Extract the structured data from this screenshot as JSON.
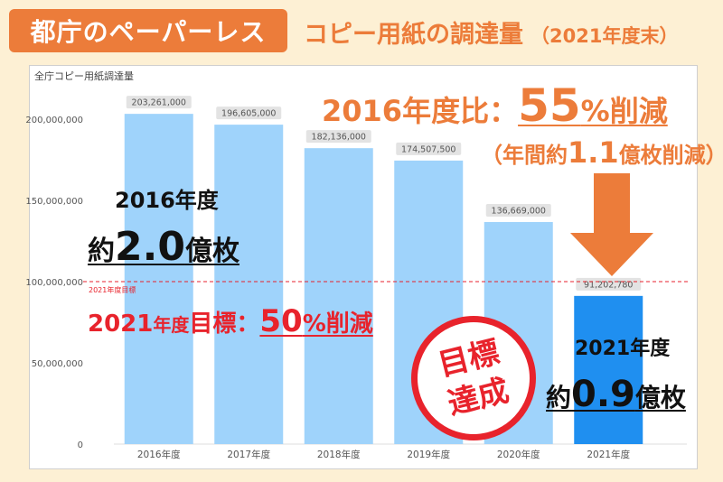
{
  "header": {
    "badge": "都庁のペーパーレス",
    "title": "コピー用紙の調達量",
    "title_sub": "（2021年度末）"
  },
  "colors": {
    "accent": "#ec7c3a",
    "bar": "#9fd3fb",
    "bar_highlight": "#1f8ff0",
    "target": "#e8232c"
  },
  "chart_data": {
    "type": "bar",
    "title": "全庁コピー用紙調達量",
    "categories": [
      "2016年度",
      "2017年度",
      "2018年度",
      "2019年度",
      "2020年度",
      "2021年度"
    ],
    "values": [
      203261000,
      196605000,
      182136000,
      174507500,
      136669000,
      91202780
    ],
    "value_labels": [
      "203,261,000",
      "196,605,000",
      "182,136,000",
      "174,507,500",
      "136,669,000",
      "91,202,780"
    ],
    "highlight_index": 5,
    "ylim": [
      0,
      200000000
    ],
    "y_ticks": [
      0,
      50000000,
      100000000,
      150000000,
      200000000
    ],
    "y_tick_labels": [
      "0",
      "50,000,000",
      "100,000,000",
      "150,000,000",
      "200,000,000"
    ],
    "target_value": 100000000,
    "target_label": "2021年度目標",
    "grid": false
  },
  "annotations": {
    "ratio_prefix": "2016年度比：",
    "ratio_value": "55",
    "ratio_unit": "%削減",
    "annual_prefix": "（年間約",
    "annual_value": "1.1",
    "annual_suffix": "億枚削減）",
    "y2016_label": "2016年度",
    "y2016_prefix": "約",
    "y2016_value": "2.0",
    "y2016_unit": "億枚",
    "target_prefix": "2021",
    "target_mid": "年度",
    "target_word": "目標：",
    "target_value": "50",
    "target_unit": "%削減",
    "stamp_line1": "目標",
    "stamp_line2": "達成",
    "y2021_label": "2021年度",
    "y2021_prefix": "約",
    "y2021_value": "0.9",
    "y2021_unit": "億枚"
  }
}
